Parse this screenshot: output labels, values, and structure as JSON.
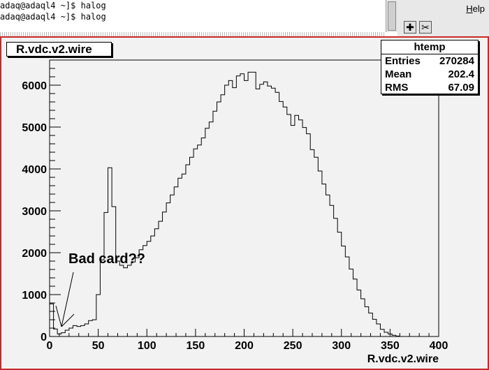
{
  "terminal": {
    "lines": [
      "adaq@adaql4 ~]$ halog",
      "adaq@adaql4 ~]$ halog"
    ]
  },
  "toolbar": {
    "help_label": "Help",
    "help_underline": "H",
    "help_rest": "elp",
    "buttons": [
      {
        "name": "zoom-plus-icon",
        "glyph": "✚"
      },
      {
        "name": "scissors-icon",
        "glyph": "✂"
      }
    ]
  },
  "canvas_title": "R.vdc.v2.wire",
  "stats_box": {
    "header": "htemp",
    "rows": [
      {
        "label": "Entries",
        "value": "270284"
      },
      {
        "label": "Mean",
        "value": "202.4"
      },
      {
        "label": "RMS",
        "value": "67.09"
      }
    ]
  },
  "annotation": {
    "text": "Bad card??"
  },
  "colors": {
    "canvas_border": "#c82828",
    "frame_bg": "#f2f2f2"
  },
  "chart_data": {
    "type": "histogram",
    "title": "R.vdc.v2.wire",
    "xlabel": "R.vdc.v2.wire",
    "ylabel": "",
    "xlim": [
      0,
      400
    ],
    "ylim": [
      0,
      6600
    ],
    "xticks": [
      0,
      50,
      100,
      150,
      200,
      250,
      300,
      350,
      400
    ],
    "yticks": [
      0,
      1000,
      2000,
      3000,
      4000,
      5000,
      6000
    ],
    "bin_width": 4,
    "bin_start": 0,
    "values": [
      780,
      180,
      60,
      90,
      150,
      200,
      260,
      240,
      260,
      300,
      380,
      400,
      1000,
      1830,
      2960,
      4030,
      3100,
      1800,
      1700,
      1640,
      1700,
      1780,
      1880,
      2070,
      2170,
      2270,
      2400,
      2570,
      2750,
      2970,
      3190,
      3380,
      3570,
      3780,
      3880,
      4100,
      4280,
      4480,
      4570,
      4740,
      4970,
      5120,
      5380,
      5600,
      5770,
      6000,
      6110,
      5940,
      6220,
      6270,
      6110,
      6310,
      6310,
      5910,
      6020,
      6080,
      5980,
      5930,
      5830,
      5610,
      5480,
      5300,
      5040,
      5280,
      5170,
      4990,
      4840,
      4460,
      4280,
      3950,
      3640,
      3380,
      3130,
      2820,
      2490,
      2160,
      1900,
      1610,
      1370,
      1110,
      900,
      710,
      560,
      410,
      300,
      170,
      100,
      60,
      30,
      10
    ]
  }
}
